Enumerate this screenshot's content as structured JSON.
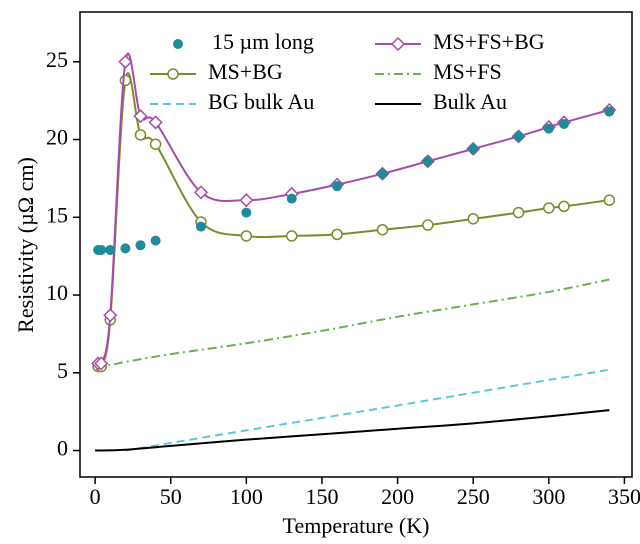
{
  "chart_data": {
    "type": "line",
    "x_label": "Temperature (K)",
    "y_label": "Resistivity (µΩ cm)",
    "xlim": [
      -10,
      355
    ],
    "xticks": [
      0,
      50,
      100,
      150,
      200,
      250,
      300,
      350
    ],
    "ylim": [
      -1.7,
      28.2
    ],
    "yticks": [
      0,
      5,
      10,
      15,
      20,
      25
    ],
    "series": [
      {
        "name": "15 µm long",
        "color": "#1f8a99",
        "style": "points",
        "marker": "dot",
        "x": [
          2,
          4,
          10,
          20,
          30,
          40,
          70,
          100,
          130,
          160,
          190,
          220,
          250,
          280,
          300,
          310,
          340
        ],
        "values": [
          12.9,
          12.9,
          12.9,
          13.0,
          13.2,
          13.5,
          14.4,
          15.3,
          16.2,
          17.0,
          17.8,
          18.6,
          19.4,
          20.2,
          20.7,
          21.0,
          21.8
        ]
      },
      {
        "name": "MS+FS+BG",
        "color": "#a64ca6",
        "style": "solid",
        "marker": "diamond",
        "x": [
          2,
          4,
          10,
          20,
          30,
          40,
          70,
          100,
          130,
          160,
          190,
          220,
          250,
          280,
          300,
          310,
          340
        ],
        "values": [
          5.6,
          5.6,
          8.7,
          25.0,
          21.5,
          21.1,
          16.6,
          16.1,
          16.5,
          17.1,
          17.8,
          18.6,
          19.4,
          20.2,
          20.8,
          21.1,
          21.9
        ]
      },
      {
        "name": "MS+BG",
        "color": "#808a2a",
        "style": "solid",
        "marker": "circle",
        "x": [
          2,
          4,
          10,
          20,
          30,
          40,
          70,
          100,
          130,
          160,
          190,
          220,
          250,
          280,
          300,
          310,
          340
        ],
        "values": [
          5.4,
          5.4,
          8.4,
          23.8,
          20.3,
          19.7,
          14.7,
          13.8,
          13.8,
          13.9,
          14.2,
          14.5,
          14.9,
          15.3,
          15.6,
          15.7,
          16.1
        ]
      },
      {
        "name": "MS+FS",
        "color": "#6ab04c",
        "style": "dash-dot",
        "marker": "none",
        "x": [
          0,
          10,
          20,
          50,
          100,
          150,
          200,
          250,
          300,
          340
        ],
        "values": [
          5.5,
          5.5,
          5.7,
          6.2,
          6.9,
          7.7,
          8.6,
          9.4,
          10.2,
          11.0
        ]
      },
      {
        "name": "BG bulk Au",
        "color": "#5bc8e0",
        "style": "dashed",
        "marker": "none",
        "x": [
          20,
          100,
          200,
          340
        ],
        "values": [
          0,
          1.3,
          2.9,
          5.2
        ]
      },
      {
        "name": "Bulk Au",
        "color": "#000000",
        "style": "solid",
        "marker": "none",
        "x": [
          0,
          20,
          50,
          100,
          150,
          200,
          250,
          300,
          340
        ],
        "values": [
          0,
          0.05,
          0.3,
          0.7,
          1.05,
          1.4,
          1.75,
          2.2,
          2.6
        ]
      }
    ]
  }
}
